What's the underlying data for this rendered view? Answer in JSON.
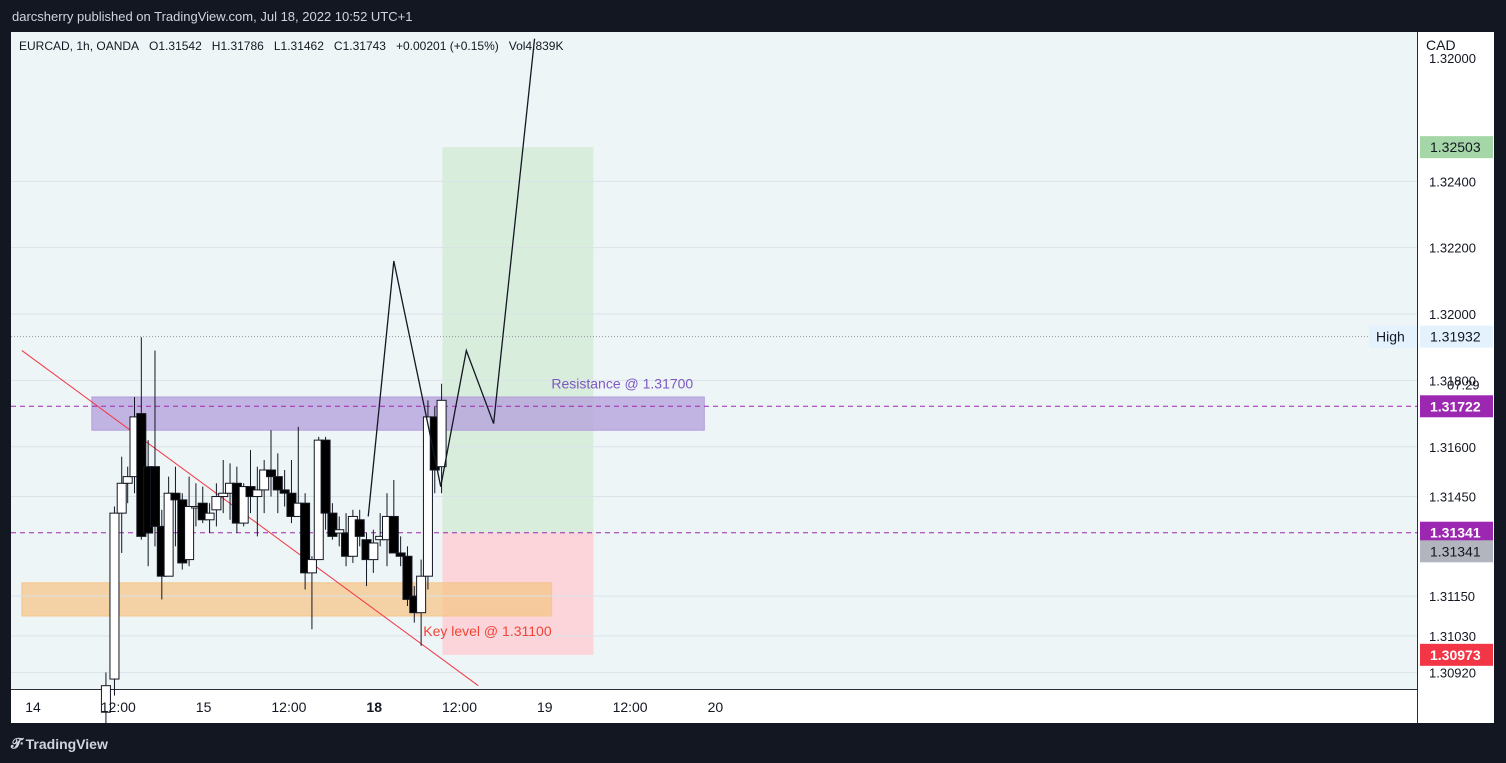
{
  "header": {
    "publisher": "darcsherry published on TradingView.com, Jul 18, 2022 10:52 UTC+1"
  },
  "legend": {
    "symbol": "EURCAD, 1h, OANDA",
    "open": "O1.31542",
    "high": "H1.31786",
    "low": "L1.31462",
    "close": "C1.31743",
    "change": "+0.00201 (+0.15%)",
    "volume": "Vol4.839K"
  },
  "footer": {
    "brand": "TradingView"
  },
  "colors": {
    "up_body": "#ffffff",
    "down_body": "#000000",
    "wick": "#131722",
    "resistance_zone": "#b39ddb",
    "key_zone": "#f5c58a",
    "trendline": "#f23645",
    "target_zone": "#c8e6c9",
    "stop_zone": "#ffcdd2",
    "resistance_label": "#7e57c2",
    "key_label": "#f44336"
  },
  "chart_data": {
    "type": "candlestick",
    "symbol": "EURCAD",
    "timeframe": "1h",
    "currency": "CAD",
    "ylim": [
      1.3087,
      1.3285
    ],
    "x_ticks": [
      {
        "t": 0,
        "label": "14",
        "bold": false
      },
      {
        "t": 10,
        "label": "12:00",
        "bold": false
      },
      {
        "t": 20,
        "label": "15",
        "bold": false
      },
      {
        "t": 30,
        "label": "12:00",
        "bold": false
      },
      {
        "t": 40,
        "label": "18",
        "bold": true
      },
      {
        "t": 50,
        "label": "12:00",
        "bold": false
      },
      {
        "t": 60,
        "label": "19",
        "bold": false
      },
      {
        "t": 70,
        "label": "12:00",
        "bold": false
      },
      {
        "t": 80,
        "label": "20",
        "bold": false
      }
    ],
    "y_ticks": [
      1.3092,
      1.3103,
      1.3115,
      1.3145,
      1.316,
      1.318,
      1.32,
      1.322,
      1.324
    ],
    "candles": [
      {
        "t": 8.55,
        "o": 1.308,
        "h": 1.3092,
        "l": 1.3075,
        "c": 1.3088
      },
      {
        "t": 9.55,
        "o": 1.309,
        "h": 1.3142,
        "l": 1.3085,
        "c": 1.314
      },
      {
        "t": 10.4,
        "o": 1.314,
        "h": 1.3157,
        "l": 1.3128,
        "c": 1.3149
      },
      {
        "t": 11.1,
        "o": 1.3149,
        "h": 1.3154,
        "l": 1.3143,
        "c": 1.3151
      },
      {
        "t": 11.9,
        "o": 1.3151,
        "h": 1.3175,
        "l": 1.3146,
        "c": 1.3169
      },
      {
        "t": 12.7,
        "o": 1.317,
        "h": 1.3193,
        "l": 1.3132,
        "c": 1.3133
      },
      {
        "t": 13.5,
        "o": 1.3154,
        "h": 1.3162,
        "l": 1.3124,
        "c": 1.3134
      },
      {
        "t": 14.3,
        "o": 1.3154,
        "h": 1.3189,
        "l": 1.313,
        "c": 1.3136
      },
      {
        "t": 15.1,
        "o": 1.3136,
        "h": 1.3141,
        "l": 1.3114,
        "c": 1.3121
      },
      {
        "t": 15.9,
        "o": 1.3121,
        "h": 1.3151,
        "l": 1.3121,
        "c": 1.3146
      },
      {
        "t": 16.7,
        "o": 1.3146,
        "h": 1.3154,
        "l": 1.313,
        "c": 1.3144
      },
      {
        "t": 17.5,
        "o": 1.3144,
        "h": 1.3146,
        "l": 1.3123,
        "c": 1.3125
      },
      {
        "t": 18.3,
        "o": 1.3126,
        "h": 1.3151,
        "l": 1.3124,
        "c": 1.3142
      },
      {
        "t": 19.1,
        "o": 1.3142,
        "h": 1.3149,
        "l": 1.3136,
        "c": 1.3142
      },
      {
        "t": 19.9,
        "o": 1.3143,
        "h": 1.3148,
        "l": 1.3137,
        "c": 1.3138
      },
      {
        "t": 20.7,
        "o": 1.3138,
        "h": 1.3143,
        "l": 1.3134,
        "c": 1.314
      },
      {
        "t": 21.5,
        "o": 1.3141,
        "h": 1.3149,
        "l": 1.3136,
        "c": 1.3145
      },
      {
        "t": 22.3,
        "o": 1.3145,
        "h": 1.3156,
        "l": 1.314,
        "c": 1.3146
      },
      {
        "t": 23.1,
        "o": 1.3146,
        "h": 1.3155,
        "l": 1.3138,
        "c": 1.3149
      },
      {
        "t": 23.9,
        "o": 1.3149,
        "h": 1.3154,
        "l": 1.3134,
        "c": 1.3137
      },
      {
        "t": 24.7,
        "o": 1.3137,
        "h": 1.3149,
        "l": 1.3136,
        "c": 1.3148
      },
      {
        "t": 25.5,
        "o": 1.3148,
        "h": 1.3159,
        "l": 1.314,
        "c": 1.3145
      },
      {
        "t": 26.3,
        "o": 1.3145,
        "h": 1.3154,
        "l": 1.3133,
        "c": 1.3147
      },
      {
        "t": 27.1,
        "o": 1.3147,
        "h": 1.3156,
        "l": 1.314,
        "c": 1.3153
      },
      {
        "t": 27.9,
        "o": 1.3153,
        "h": 1.3165,
        "l": 1.3145,
        "c": 1.3151
      },
      {
        "t": 28.7,
        "o": 1.3151,
        "h": 1.3158,
        "l": 1.314,
        "c": 1.3147
      },
      {
        "t": 29.5,
        "o": 1.3147,
        "h": 1.3153,
        "l": 1.3142,
        "c": 1.3146
      },
      {
        "t": 30.3,
        "o": 1.3146,
        "h": 1.3156,
        "l": 1.3137,
        "c": 1.3139
      },
      {
        "t": 31.1,
        "o": 1.3139,
        "h": 1.3166,
        "l": 1.3139,
        "c": 1.3143
      },
      {
        "t": 31.9,
        "o": 1.3143,
        "h": 1.3146,
        "l": 1.3117,
        "c": 1.3122
      },
      {
        "t": 32.7,
        "o": 1.3122,
        "h": 1.3127,
        "l": 1.3105,
        "c": 1.3126
      },
      {
        "t": 33.5,
        "o": 1.3126,
        "h": 1.3163,
        "l": 1.3126,
        "c": 1.3162
      },
      {
        "t": 34.3,
        "o": 1.3162,
        "h": 1.3163,
        "l": 1.3135,
        "c": 1.314
      },
      {
        "t": 35.1,
        "o": 1.314,
        "h": 1.3143,
        "l": 1.3132,
        "c": 1.3133
      },
      {
        "t": 35.9,
        "o": 1.3134,
        "h": 1.3139,
        "l": 1.313,
        "c": 1.3135
      },
      {
        "t": 36.7,
        "o": 1.3134,
        "h": 1.314,
        "l": 1.3124,
        "c": 1.3127
      },
      {
        "t": 37.5,
        "o": 1.3127,
        "h": 1.3141,
        "l": 1.3125,
        "c": 1.3139
      },
      {
        "t": 38.3,
        "o": 1.3138,
        "h": 1.3141,
        "l": 1.313,
        "c": 1.3133
      },
      {
        "t": 39.1,
        "o": 1.3132,
        "h": 1.3134,
        "l": 1.3118,
        "c": 1.3126
      },
      {
        "t": 39.9,
        "o": 1.3126,
        "h": 1.3135,
        "l": 1.3122,
        "c": 1.3131
      },
      {
        "t": 40.7,
        "o": 1.3132,
        "h": 1.314,
        "l": 1.313,
        "c": 1.3133
      },
      {
        "t": 41.5,
        "o": 1.3132,
        "h": 1.3146,
        "l": 1.3124,
        "c": 1.3139
      },
      {
        "t": 42.3,
        "o": 1.3139,
        "h": 1.315,
        "l": 1.3128,
        "c": 1.3128
      },
      {
        "t": 43.1,
        "o": 1.3128,
        "h": 1.3133,
        "l": 1.3124,
        "c": 1.3127
      },
      {
        "t": 43.9,
        "o": 1.3127,
        "h": 1.313,
        "l": 1.3112,
        "c": 1.3114
      },
      {
        "t": 44.7,
        "o": 1.3115,
        "h": 1.3118,
        "l": 1.3107,
        "c": 1.311
      },
      {
        "t": 45.5,
        "o": 1.311,
        "h": 1.3126,
        "l": 1.31,
        "c": 1.3121
      },
      {
        "t": 46.3,
        "o": 1.3121,
        "h": 1.3174,
        "l": 1.3117,
        "c": 1.3169
      },
      {
        "t": 47.1,
        "o": 1.3169,
        "h": 1.3172,
        "l": 1.3146,
        "c": 1.3153
      },
      {
        "t": 47.9,
        "o": 1.3154,
        "h": 1.3179,
        "l": 1.3146,
        "c": 1.3174
      }
    ],
    "projection_path": [
      {
        "t": 39.3,
        "p": 1.3139
      },
      {
        "t": 42.3,
        "p": 1.3216
      },
      {
        "t": 46.2,
        "p": 1.3168
      },
      {
        "t": 47.8,
        "p": 1.3148
      },
      {
        "t": 50.8,
        "p": 1.3189
      },
      {
        "t": 54.0,
        "p": 1.3167
      },
      {
        "t": 58.8,
        "p": 1.3283
      }
    ],
    "trendline": [
      {
        "t": -1.3,
        "p": 1.3189
      },
      {
        "t": 52.2,
        "p": 1.3088
      }
    ],
    "zones": [
      {
        "name": "resistance",
        "t1": 6.9,
        "t2": 78.7,
        "p1": 1.3165,
        "p2": 1.3175,
        "label": "Resistance @ 1.31700",
        "label_t": 77.4,
        "label_p": 1.31775
      },
      {
        "name": "key",
        "t1": -1.3,
        "t2": 60.8,
        "p1": 1.3109,
        "p2": 1.3119,
        "label": "Key level @ 1.31100",
        "label_t": 60.8,
        "label_p": 1.3103
      }
    ],
    "position": {
      "t1": 48.0,
      "t2": 65.7,
      "target": 1.32503,
      "entry": 1.31341,
      "stop": 1.30973
    },
    "dashed_levels": [
      1.31722,
      1.31341
    ],
    "high_level": 1.31932,
    "right_axis": {
      "currency": "CAD",
      "top_partial_label": "1.32000",
      "price_tags": [
        {
          "value": 1.32503,
          "label": "1.32503",
          "bg": "#a5d6a7",
          "fg": "#131722"
        },
        {
          "value": 1.31932,
          "label": "1.31932",
          "bg": "#e3f2fd",
          "fg": "#131722"
        },
        {
          "value": 1.31722,
          "label": "1.31722",
          "bg": "#9c27b0",
          "fg": "#ffffff"
        },
        {
          "value": 1.31341,
          "label": "1.31341",
          "bg": "#9c27b0",
          "fg": "#ffffff"
        },
        {
          "value": 1.31285,
          "label": "1.31341",
          "bg": "#b2b5be",
          "fg": "#131722"
        },
        {
          "value": 1.30973,
          "label": "1.30973",
          "bg": "#f23645",
          "fg": "#ffffff"
        }
      ],
      "high_tag": "High",
      "countdown": "07:29"
    }
  }
}
